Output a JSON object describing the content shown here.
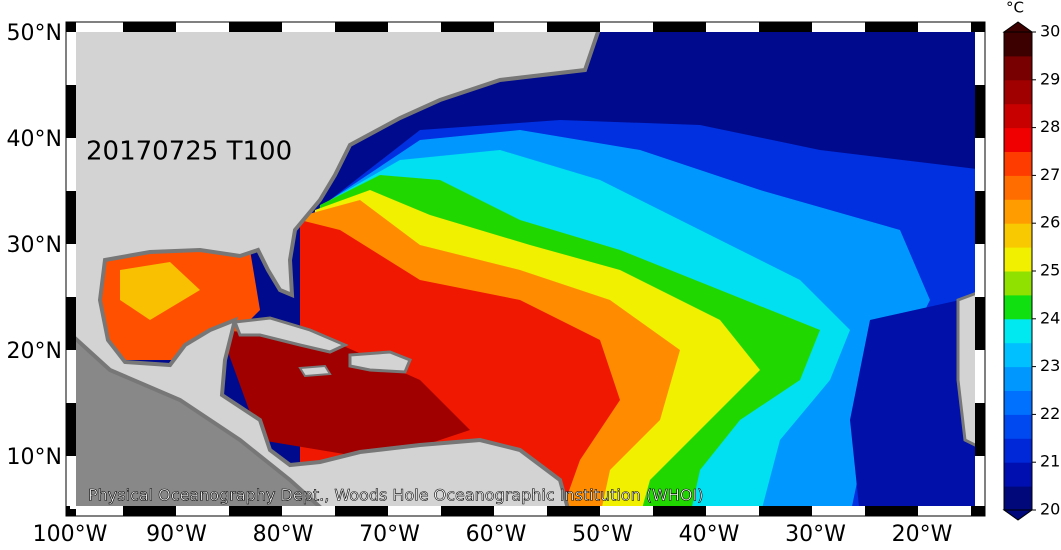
{
  "map": {
    "title": "20170725 T100",
    "credit": "Physical Oceanography Dept., Woods Hole Oceanographic Institution (WHOI)",
    "lon_labels": [
      "100°W",
      "90°W",
      "80°W",
      "70°W",
      "60°W",
      "50°W",
      "40°W",
      "30°W",
      "20°W"
    ],
    "lat_labels": [
      "50°N",
      "40°N",
      "30°N",
      "20°N",
      "10°N"
    ]
  },
  "colorbar": {
    "unit": "°C",
    "ticks": [
      20,
      21,
      22,
      23,
      24,
      25,
      26,
      27,
      28,
      29,
      30
    ],
    "colors": [
      "#00087a",
      "#0010b0",
      "#0028d8",
      "#0048f0",
      "#0070ff",
      "#0098ff",
      "#00c0ff",
      "#00e8f0",
      "#10e010",
      "#90e000",
      "#f0f000",
      "#f8c800",
      "#ff9c00",
      "#ff6c00",
      "#ff3c00",
      "#f00000",
      "#c80000",
      "#a00000",
      "#780000",
      "#3c0000"
    ]
  }
}
